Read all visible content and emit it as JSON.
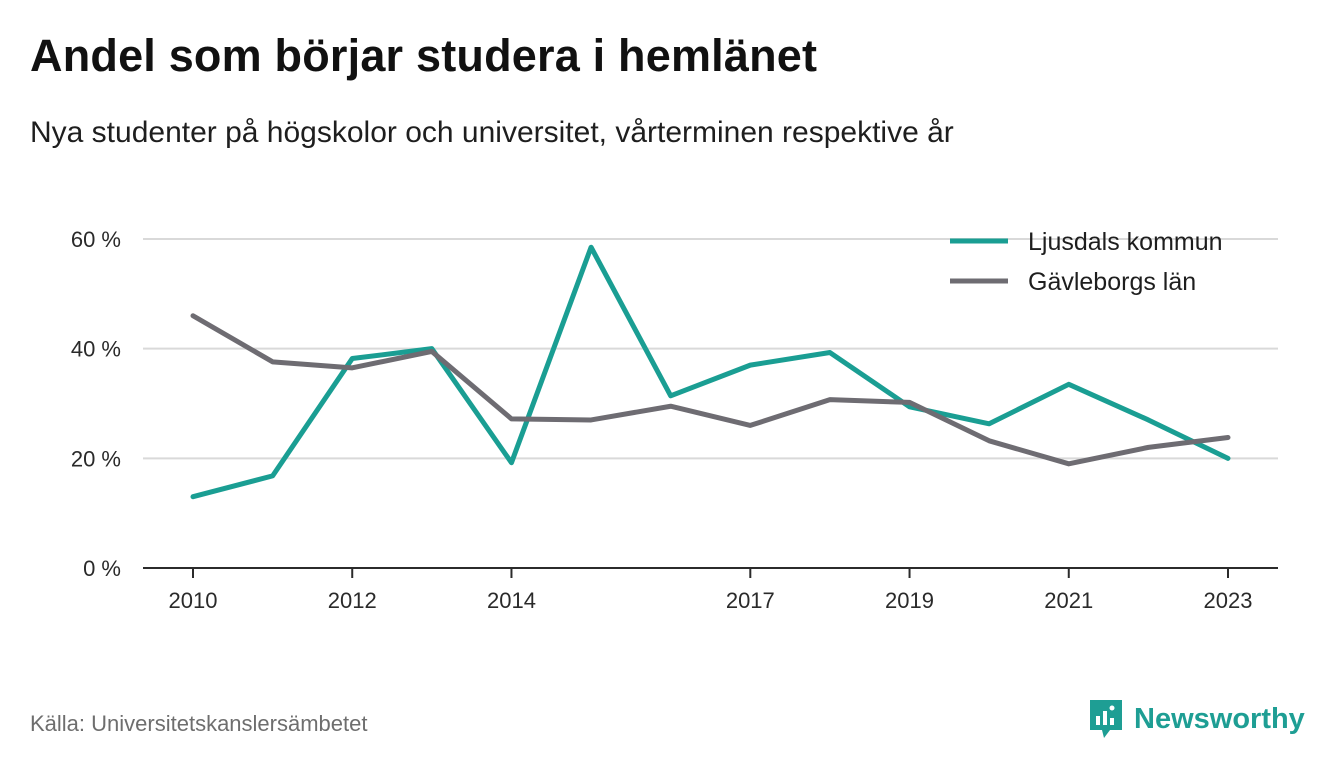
{
  "title": "Andel som börjar studera i hemlänet",
  "subtitle": "Nya studenter på högskolor och universitet, vårterminen respektive år",
  "source": "Källa: Universitetskanslersämbetet",
  "brand": {
    "name": "Newsworthy",
    "color": "#1e9e94"
  },
  "chart_data": {
    "type": "line",
    "x": [
      2010,
      2011,
      2012,
      2013,
      2014,
      2015,
      2016,
      2017,
      2018,
      2019,
      2020,
      2021,
      2022,
      2023
    ],
    "x_tick_labels": [
      "2010",
      "2012",
      "2014",
      "2017",
      "2019",
      "2021",
      "2023"
    ],
    "y_tick_labels": [
      "0 %",
      "20 %",
      "40 %",
      "60 %"
    ],
    "ylim": [
      0,
      60
    ],
    "y_ticks": [
      0,
      20,
      40,
      60
    ],
    "grid": "horizontal",
    "legend_position": "top-right",
    "series": [
      {
        "name": "Ljusdals kommun",
        "color": "#1a9e93",
        "values": [
          13,
          16.8,
          38.2,
          40,
          19.2,
          58.5,
          31.4,
          37,
          39.3,
          29.4,
          26.3,
          33.5,
          27,
          20
        ]
      },
      {
        "name": "Gävleborgs län",
        "color": "#6e6c72",
        "values": [
          46,
          37.6,
          36.5,
          39.5,
          27.2,
          27,
          29.5,
          26,
          30.7,
          30.2,
          23.2,
          19,
          22,
          23.8
        ]
      }
    ]
  }
}
